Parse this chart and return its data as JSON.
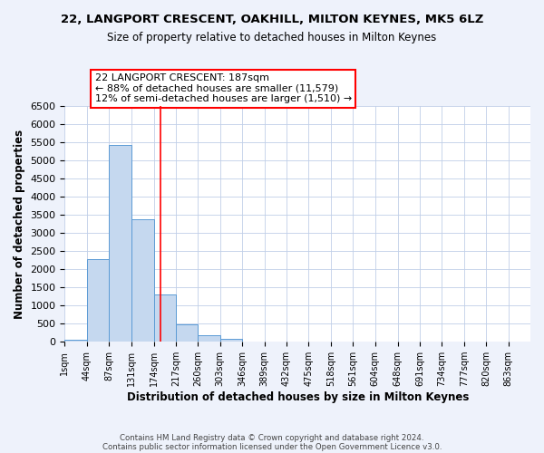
{
  "title_line1": "22, LANGPORT CRESCENT, OAKHILL, MILTON KEYNES, MK5 6LZ",
  "title_line2": "Size of property relative to detached houses in Milton Keynes",
  "xlabel": "Distribution of detached houses by size in Milton Keynes",
  "ylabel": "Number of detached properties",
  "bin_labels": [
    "1sqm",
    "44sqm",
    "87sqm",
    "131sqm",
    "174sqm",
    "217sqm",
    "260sqm",
    "303sqm",
    "346sqm",
    "389sqm",
    "432sqm",
    "475sqm",
    "518sqm",
    "561sqm",
    "604sqm",
    "648sqm",
    "691sqm",
    "734sqm",
    "777sqm",
    "820sqm",
    "863sqm"
  ],
  "bin_edges": [
    1,
    44,
    87,
    131,
    174,
    217,
    260,
    303,
    346,
    389,
    432,
    475,
    518,
    561,
    604,
    648,
    691,
    734,
    777,
    820,
    863
  ],
  "bar_heights": [
    60,
    2280,
    5430,
    3380,
    1310,
    480,
    190,
    80,
    0,
    0,
    0,
    0,
    0,
    0,
    0,
    0,
    0,
    0,
    0,
    0
  ],
  "bar_color": "#c5d8ef",
  "bar_edge_color": "#5b9bd5",
  "vline_x": 187,
  "vline_color": "red",
  "ylim": [
    0,
    6500
  ],
  "yticks": [
    0,
    500,
    1000,
    1500,
    2000,
    2500,
    3000,
    3500,
    4000,
    4500,
    5000,
    5500,
    6000,
    6500
  ],
  "annotation_title": "22 LANGPORT CRESCENT: 187sqm",
  "annotation_line2": "← 88% of detached houses are smaller (11,579)",
  "annotation_line3": "12% of semi-detached houses are larger (1,510) →",
  "footer_line1": "Contains HM Land Registry data © Crown copyright and database right 2024.",
  "footer_line2": "Contains public sector information licensed under the Open Government Licence v3.0.",
  "bg_color": "#eef2fb",
  "plot_bg_color": "#ffffff",
  "grid_color": "#c0cfe8"
}
